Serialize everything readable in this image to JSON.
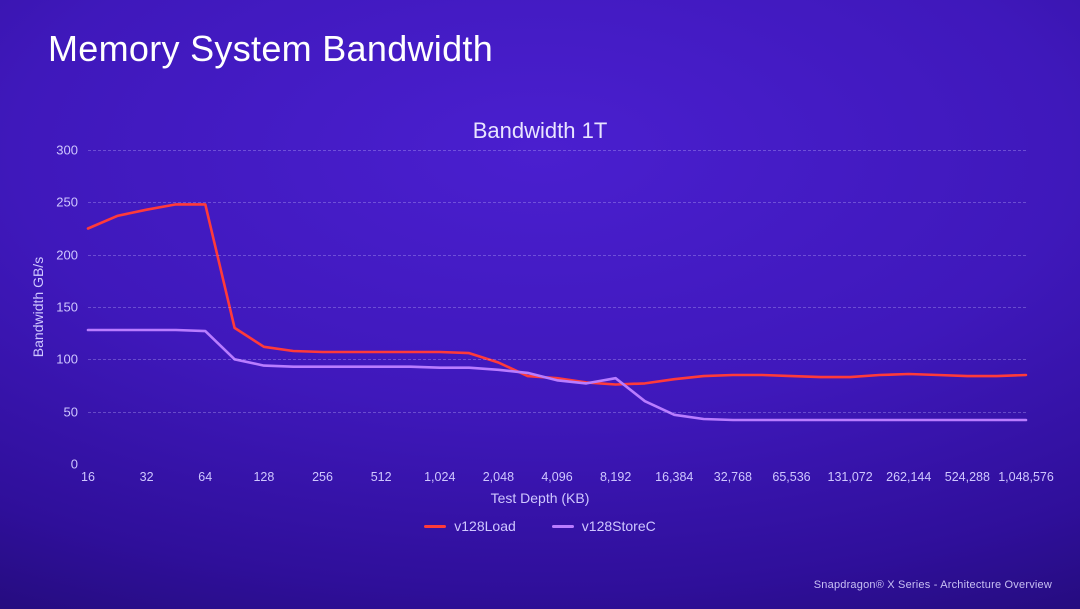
{
  "page": {
    "title": "Memory System Bandwidth",
    "footer": "Snapdragon® X Series - Architecture Overview"
  },
  "chart": {
    "type": "line",
    "title": "Bandwidth 1T",
    "title_fontsize": 22,
    "title_color": "#e8e4ff",
    "plot_bg": "transparent",
    "grid_color": "rgba(200,190,255,0.32)",
    "grid_dash": "4 4",
    "tick_color": "#cfc7ff",
    "tick_fontsize": 13,
    "line_width": 2.6,
    "x": {
      "label": "Test Depth (KB)",
      "scale": "log2",
      "ticks": [
        "16",
        "32",
        "64",
        "128",
        "256",
        "512",
        "1,024",
        "2,048",
        "4,096",
        "8,192",
        "16,384",
        "32,768",
        "65,536",
        "131,072",
        "262,144",
        "524,288",
        "1,048,576"
      ]
    },
    "y": {
      "label": "Bandwidth GB/s",
      "min": 0,
      "max": 300,
      "tick_step": 50,
      "ticks": [
        "0",
        "50",
        "100",
        "150",
        "200",
        "250",
        "300"
      ]
    },
    "series": [
      {
        "name": "v128Load",
        "color": "#ff3a3a",
        "values": [
          225,
          237,
          243,
          248,
          248,
          130,
          112,
          108,
          107,
          107,
          107,
          107,
          107,
          106,
          97,
          84,
          82,
          78,
          76,
          77,
          81,
          84,
          85,
          85,
          84,
          83,
          83,
          85,
          86,
          85,
          84,
          84,
          85
        ]
      },
      {
        "name": "v128StoreC",
        "color": "#b97cff",
        "values": [
          128,
          128,
          128,
          128,
          127,
          100,
          94,
          93,
          93,
          93,
          93,
          93,
          92,
          92,
          90,
          87,
          80,
          77,
          82,
          60,
          47,
          43,
          42,
          42,
          42,
          42,
          42,
          42,
          42,
          42,
          42,
          42,
          42
        ]
      }
    ]
  }
}
